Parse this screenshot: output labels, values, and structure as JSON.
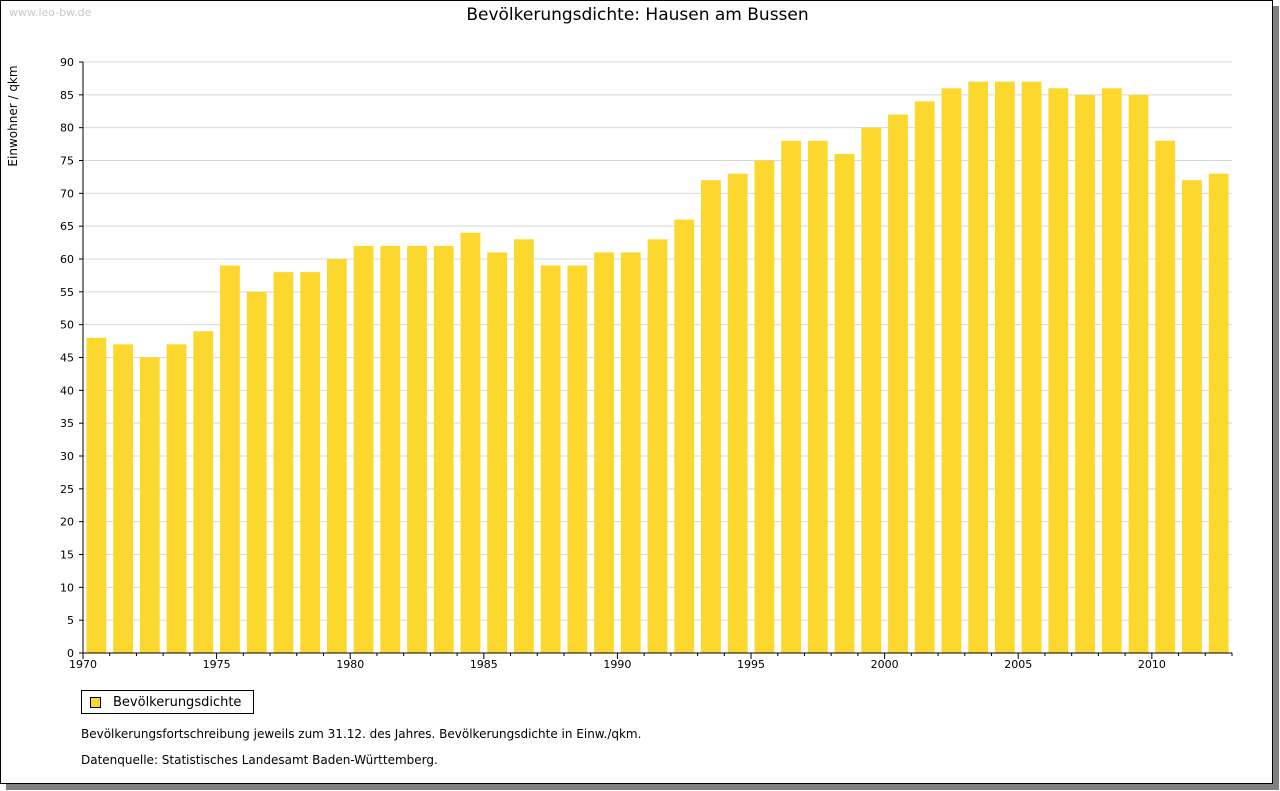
{
  "watermark": "www.leo-bw.de",
  "colors": {
    "bar": "#fcd72e",
    "grid": "#d8d8d8",
    "axis": "#000000"
  },
  "chart_data": {
    "type": "bar",
    "title": "Bevölkerungsdichte: Hausen am Bussen",
    "ylabel": "Einwohner / qkm",
    "xlabel": "",
    "ylim": [
      0,
      90
    ],
    "ytick_step": 5,
    "grid": true,
    "legend_position": "bottom-left",
    "xtick_labels": [
      "1970",
      "1975",
      "1980",
      "1985",
      "1990",
      "1995",
      "2000",
      "2005",
      "2010"
    ],
    "categories": [
      1970,
      1971,
      1972,
      1973,
      1974,
      1975,
      1976,
      1977,
      1978,
      1979,
      1980,
      1981,
      1982,
      1983,
      1984,
      1985,
      1986,
      1987,
      1988,
      1989,
      1990,
      1991,
      1992,
      1993,
      1994,
      1995,
      1996,
      1997,
      1998,
      1999,
      2000,
      2001,
      2002,
      2003,
      2004,
      2005,
      2006,
      2007,
      2008,
      2009,
      2010,
      2011,
      2012
    ],
    "series": [
      {
        "name": "Bevölkerungsdichte",
        "values": [
          48,
          47,
          45,
          47,
          49,
          59,
          55,
          58,
          58,
          60,
          62,
          62,
          62,
          62,
          64,
          61,
          63,
          59,
          59,
          61,
          61,
          63,
          66,
          72,
          73,
          75,
          78,
          78,
          76,
          80,
          82,
          84,
          86,
          87,
          87,
          87,
          86,
          85,
          86,
          85,
          78,
          72,
          73
        ]
      }
    ]
  },
  "notes": {
    "line1": "Bevölkerungsfortschreibung jeweils zum 31.12. des Jahres. Bevölkerungsdichte in Einw./qkm.",
    "line2": "Datenquelle: Statistisches Landesamt Baden-Württemberg."
  }
}
